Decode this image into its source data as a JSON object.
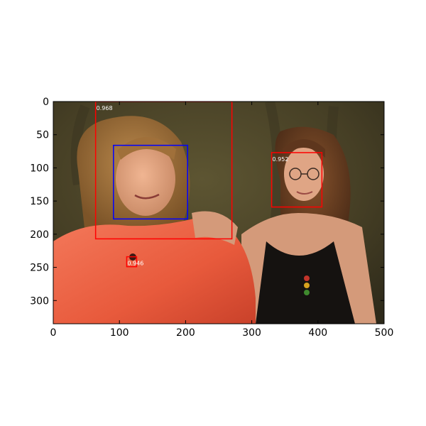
{
  "figure": {
    "xaxis": {
      "range": [
        0,
        500
      ],
      "ticks": [
        0,
        100,
        200,
        300,
        400,
        500
      ]
    },
    "yaxis": {
      "range": [
        0,
        335
      ],
      "inverted": true,
      "ticks": [
        0,
        50,
        100,
        150,
        200,
        250,
        300
      ]
    },
    "detections": [
      {
        "x0": 64,
        "y0": 0,
        "x1": 270,
        "y1": 207,
        "color": "#ff0000",
        "score": "0.968"
      },
      {
        "x0": 91,
        "y0": 66,
        "x1": 203,
        "y1": 177,
        "color": "#0000ff",
        "score": ""
      },
      {
        "x0": 330,
        "y0": 77,
        "x1": 406,
        "y1": 159,
        "color": "#ff0000",
        "score": "0.952"
      },
      {
        "x0": 111,
        "y0": 234,
        "x1": 126,
        "y1": 249,
        "color": "#ff0000",
        "score": "0.946"
      }
    ],
    "photo": {
      "description_colors": {
        "backdrop": "#4a4228",
        "woman_left_shirt": "#f06a4e",
        "woman_left_hair": "#9a6a34",
        "woman_right_top": "#141210",
        "woman_right_hair": "#6b4023",
        "skin": "#d9a07e"
      }
    }
  }
}
